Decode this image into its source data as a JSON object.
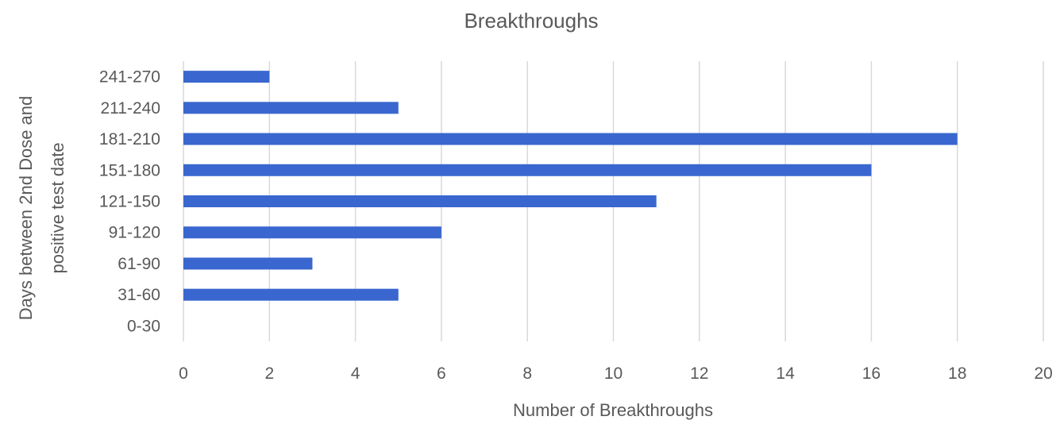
{
  "chart_data": {
    "type": "bar",
    "orientation": "horizontal",
    "title": "Breakthroughs",
    "xlabel": "Number of Breakthroughs",
    "ylabel_lines": [
      "Days between 2nd Dose and",
      "positive test date"
    ],
    "categories": [
      "0-30",
      "31-60",
      "61-90",
      "91-120",
      "121-150",
      "151-180",
      "181-210",
      "211-240",
      "241-270"
    ],
    "values": [
      0,
      5,
      3,
      6,
      11,
      16,
      18,
      5,
      2
    ],
    "xlim": [
      0,
      20
    ],
    "xticks": [
      0,
      2,
      4,
      6,
      8,
      10,
      12,
      14,
      16,
      18,
      20
    ],
    "grid": "vertical",
    "legend": "none",
    "colors": {
      "bar": "#3A67CF",
      "grid": "#D9D9D9",
      "text": "#595959"
    }
  }
}
